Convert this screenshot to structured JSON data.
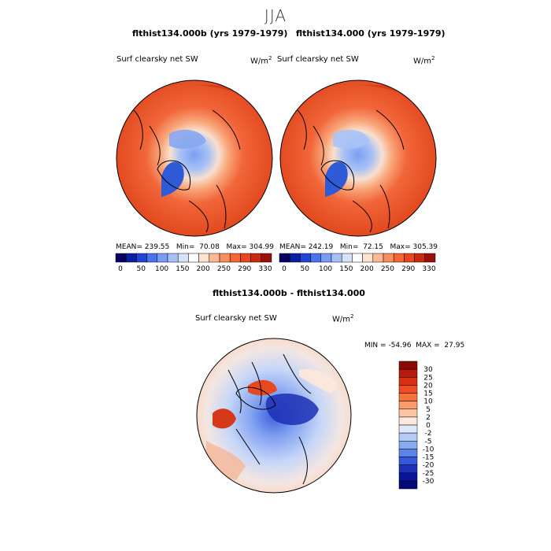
{
  "title": "JJA",
  "panels": [
    {
      "title": "flthist134.000b (yrs 1979-1979)",
      "variable": "Surf clearsky net SW",
      "units": "W/m",
      "units_exp": "2",
      "stats": {
        "mean_label": "MEAN=",
        "mean": "239.55",
        "min_label": "Min=",
        "min": "70.08",
        "max_label": "Max=",
        "max": "304.99"
      }
    },
    {
      "title": "flthist134.000 (yrs 1979-1979)",
      "variable": "Surf clearsky net SW",
      "units": "W/m",
      "units_exp": "2",
      "stats": {
        "mean_label": "MEAN=",
        "mean": "242.19",
        "min_label": "Min=",
        "min": "72.15",
        "max_label": "Max=",
        "max": "305.39"
      }
    }
  ],
  "colorbar_top": {
    "ticks": [
      "0",
      "50",
      "100",
      "150",
      "200",
      "250",
      "290",
      "330"
    ],
    "colors": [
      "#08005e",
      "#0b1fa3",
      "#2444d6",
      "#4a72ef",
      "#7a9cf3",
      "#a8c0f7",
      "#d6e2fb",
      "#ffffff",
      "#fde3cf",
      "#fbb894",
      "#f98e5e",
      "#f26634",
      "#e8461d",
      "#c92a10",
      "#9a0f08"
    ]
  },
  "diff": {
    "title": "flthist134.000b - flthist134.000",
    "variable": "Surf clearsky net SW",
    "units": "W/m",
    "units_exp": "2",
    "min_label": "MIN =",
    "min": "-54.96",
    "max_label": "MAX =",
    "max": "27.95",
    "colorbar": {
      "labels": [
        "30",
        "25",
        "20",
        "15",
        "10",
        "5",
        "2",
        "0",
        "-2",
        "-5",
        "-10",
        "-15",
        "-20",
        "-25",
        "-30"
      ],
      "colors": [
        "#8c0a06",
        "#b7190c",
        "#d93014",
        "#ef4d1f",
        "#f8733c",
        "#fb9b6b",
        "#fcc4a4",
        "#fde8da",
        "#dde9fb",
        "#b5cbf6",
        "#89a9f0",
        "#5c83e8",
        "#3558d8",
        "#1c30b8",
        "#0a1496",
        "#05087a"
      ]
    }
  }
}
